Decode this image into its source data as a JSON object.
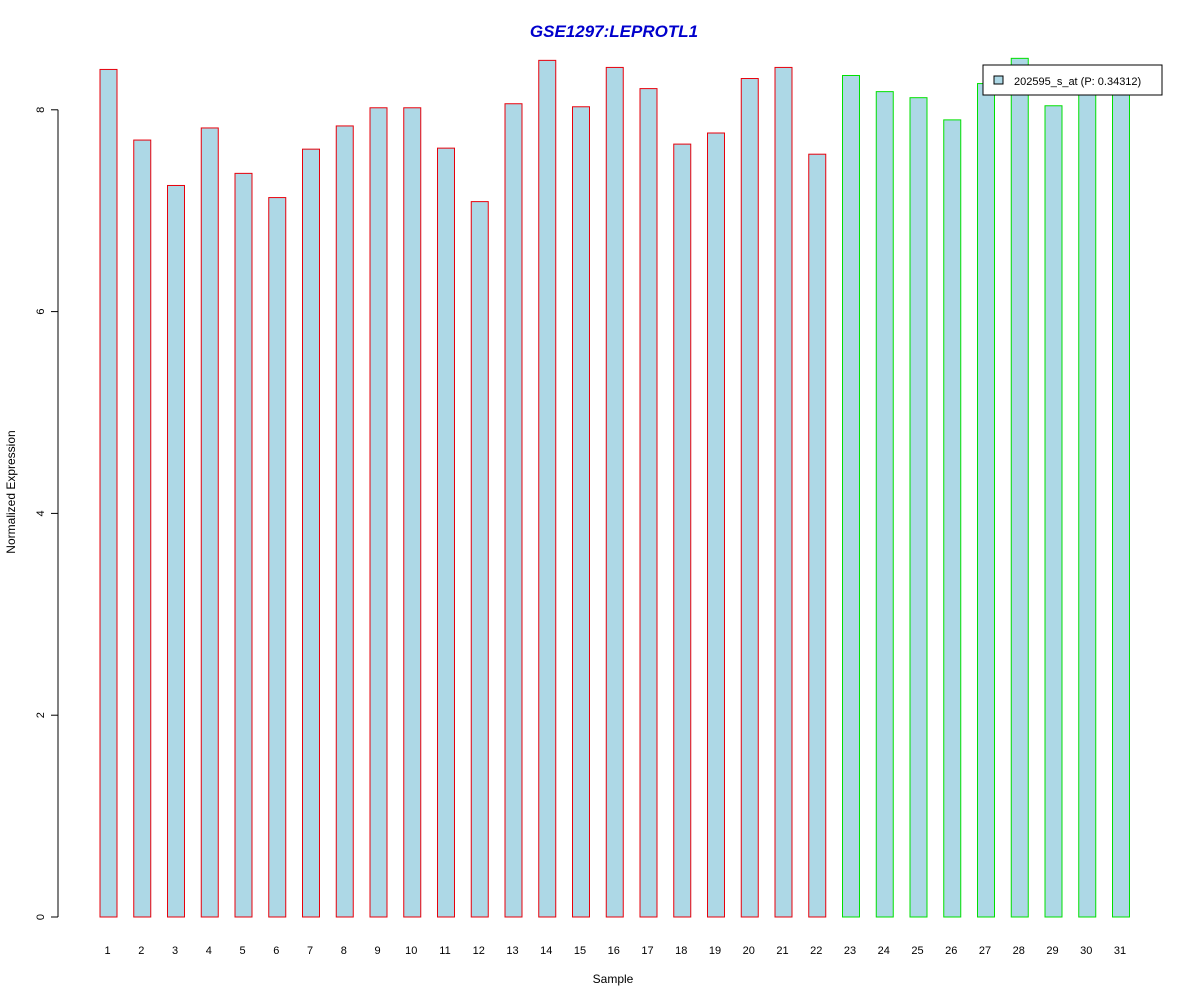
{
  "chart_data": {
    "type": "bar",
    "title": "GSE1297:LEPROTL1",
    "xlabel": "Sample",
    "ylabel": "Normalized Expression",
    "ylim": [
      0,
      8.5
    ],
    "yticks": [
      0,
      2,
      4,
      6,
      8
    ],
    "grid": false,
    "categories": [
      "1",
      "2",
      "3",
      "4",
      "5",
      "6",
      "7",
      "8",
      "9",
      "10",
      "11",
      "12",
      "13",
      "14",
      "15",
      "16",
      "17",
      "18",
      "19",
      "20",
      "21",
      "22",
      "23",
      "24",
      "25",
      "26",
      "27",
      "28",
      "29",
      "30",
      "31"
    ],
    "series": [
      {
        "name": "202595_s_at (P: 0.34312)",
        "values": [
          8.4,
          7.7,
          7.25,
          7.82,
          7.37,
          7.13,
          7.61,
          7.84,
          8.02,
          8.02,
          7.62,
          7.09,
          8.06,
          8.49,
          8.03,
          8.42,
          8.21,
          7.66,
          7.77,
          8.31,
          8.42,
          7.56,
          8.34,
          8.18,
          8.12,
          7.9,
          8.26,
          8.51,
          8.04,
          8.15,
          8.19
        ]
      }
    ],
    "groups": [
      {
        "from": 1,
        "to": 22,
        "border_color": "#e8000b"
      },
      {
        "from": 23,
        "to": 31,
        "border_color": "#00e000"
      }
    ],
    "bar_fill": "#add8e6",
    "legend": {
      "placement": "top-right",
      "entries": [
        "202595_s_at (P: 0.34312)"
      ]
    }
  }
}
